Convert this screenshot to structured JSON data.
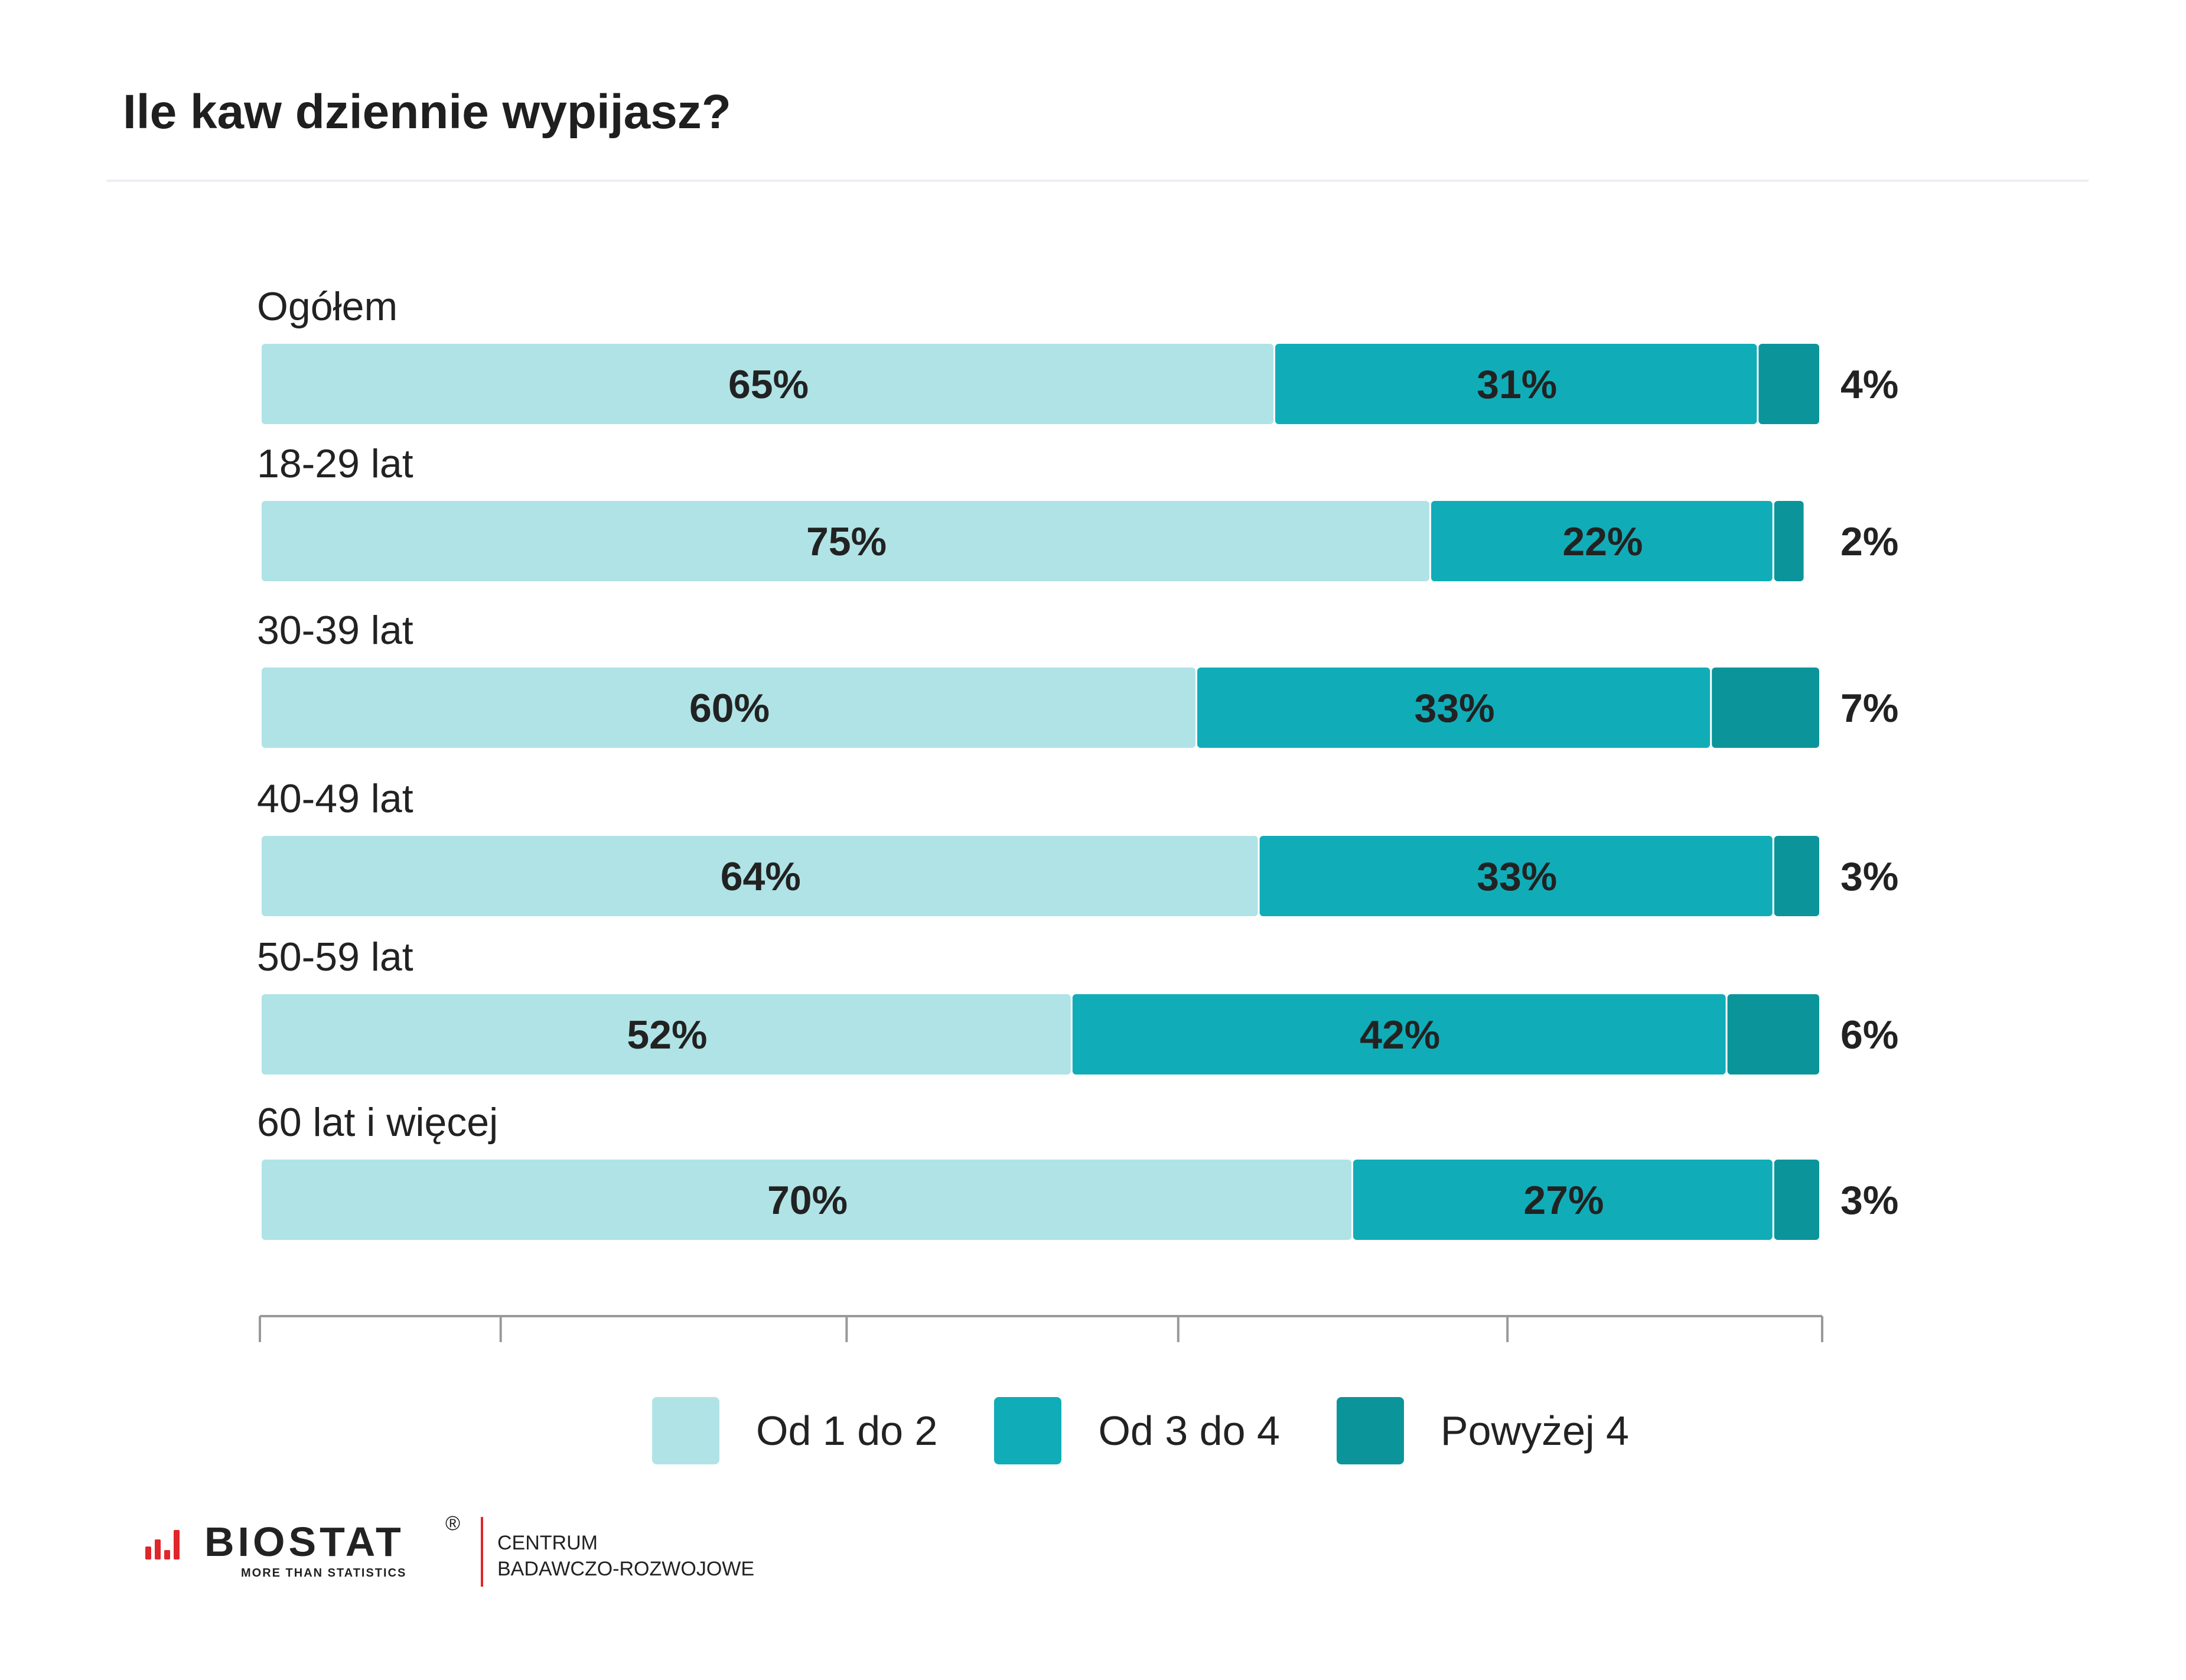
{
  "header": {
    "title": "Ile kaw dziennie wypijasz?"
  },
  "chart_data": {
    "type": "bar",
    "orientation": "horizontal",
    "stacked": true,
    "unit": "%",
    "categories": [
      "Ogółem",
      "18-29 lat",
      "30-39 lat",
      "40-49 lat",
      "50-59 lat",
      "60 lat i więcej"
    ],
    "series": [
      {
        "name": "Od 1 do 2",
        "color": "#b0e3e6",
        "values": [
          65,
          75,
          60,
          64,
          52,
          70
        ]
      },
      {
        "name": "Od 3 do 4",
        "color": "#10adb8",
        "values": [
          31,
          22,
          33,
          33,
          42,
          27
        ]
      },
      {
        "name": "Powyżej 4",
        "color": "#0b959b",
        "values": [
          4,
          2,
          7,
          3,
          6,
          3
        ]
      }
    ],
    "data_labels": {
      "Od 1 do 2": [
        "65%",
        "75%",
        "60%",
        "64%",
        "52%",
        "70%"
      ],
      "Od 3 do 4": [
        "31%",
        "22%",
        "33%",
        "33%",
        "42%",
        "27%"
      ],
      "Powyżej 4": [
        "4%",
        "2%",
        "7%",
        "3%",
        "6%",
        "3%"
      ]
    },
    "xlim": [
      0,
      100
    ],
    "legend_position": "bottom",
    "grid": false
  },
  "legend": {
    "items": [
      {
        "label": "Od 1 do 2",
        "color": "#b0e3e6"
      },
      {
        "label": "Od 3 do 4",
        "color": "#10adb8"
      },
      {
        "label": "Powyżej 4",
        "color": "#0b959b"
      }
    ]
  },
  "footer": {
    "logo_text": "BIOSTAT",
    "logo_registered": "®",
    "logo_tagline": "MORE THAN STATISTICS",
    "center_line1": "CENTRUM",
    "center_line2": "BADAWCZO-ROZWOJOWE"
  }
}
